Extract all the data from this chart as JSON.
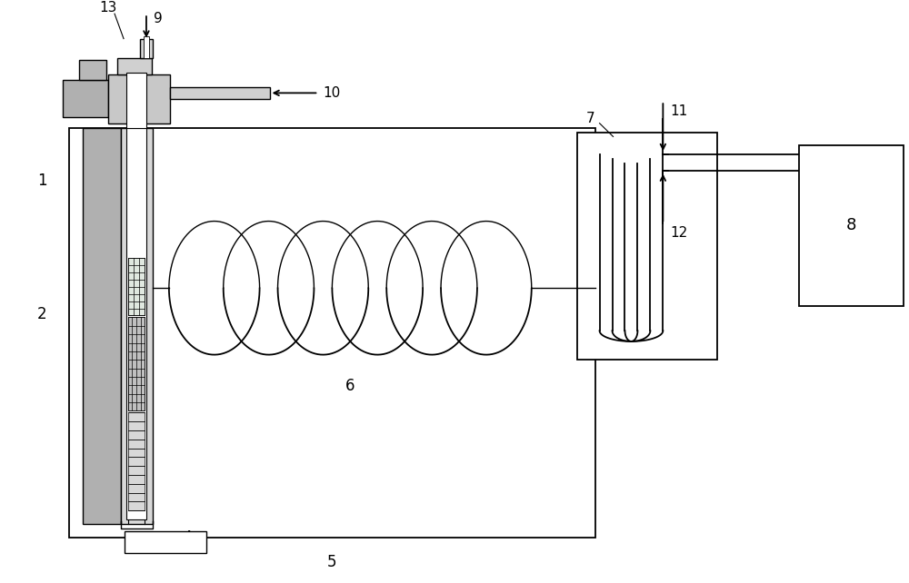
{
  "bg_color": "#ffffff",
  "lc": "#000000",
  "gray1": "#a0a0a0",
  "gray2": "#b8b8b8",
  "gray3": "#d0d0d0",
  "gray4": "#e0e0e0",
  "pink": "#c8a0a0"
}
